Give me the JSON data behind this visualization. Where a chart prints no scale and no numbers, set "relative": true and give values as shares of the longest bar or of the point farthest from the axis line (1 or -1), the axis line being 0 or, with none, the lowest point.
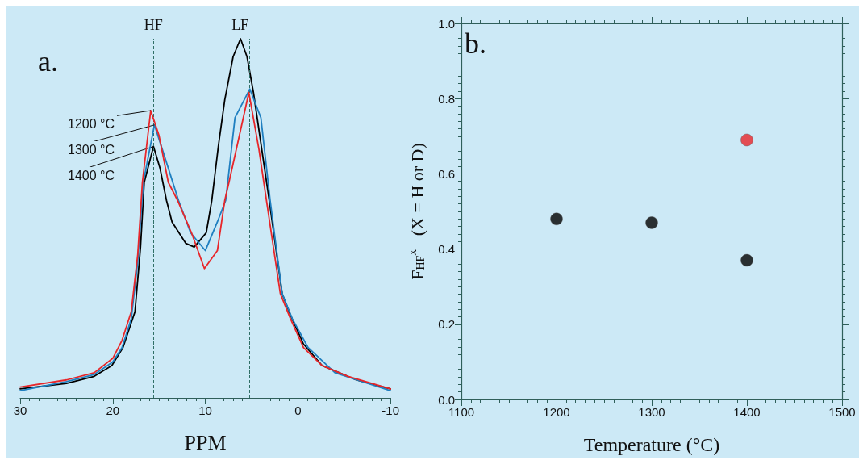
{
  "chart_data": [
    {
      "type": "line",
      "relative": true,
      "xlabel": "PPM",
      "xlim": [
        30,
        -10
      ],
      "xticks": [
        30,
        20,
        10,
        0,
        -10
      ],
      "grid": false,
      "marker": "none",
      "line_style": "solid",
      "annotations": [
        "a."
      ],
      "ref_lines": [
        {
          "axis": "x",
          "value": 15.6,
          "label": "HF",
          "line_style": "dashed",
          "color": "#2f6f66"
        },
        {
          "axis": "x",
          "value": 6.25,
          "label": "LF",
          "line_style": "dashed",
          "color": "#2f6f66"
        },
        {
          "axis": "x",
          "value": 5.25,
          "label": null,
          "line_style": "dashed",
          "color": "#2f6f66"
        }
      ],
      "series": [
        {
          "name": "1200 °C",
          "color": "#e8262a",
          "x": [
            30,
            25,
            22,
            20,
            19,
            18,
            17.3,
            16.8,
            15.9,
            15,
            14,
            13,
            11.5,
            10.1,
            8.7,
            7.9,
            7.45,
            6.5,
            5.3,
            4.2,
            3.4,
            1.9,
            0.8,
            -0.6,
            -2.6,
            -5.4,
            -10
          ],
          "values": [
            0.03,
            0.05,
            0.07,
            0.11,
            0.16,
            0.24,
            0.4,
            0.6,
            0.8,
            0.73,
            0.6,
            0.55,
            0.46,
            0.36,
            0.41,
            0.55,
            0.6,
            0.71,
            0.85,
            0.69,
            0.55,
            0.29,
            0.22,
            0.14,
            0.09,
            0.06,
            0.025
          ]
        },
        {
          "name": "1300 °C",
          "color": "#1f7fc0",
          "x": [
            30,
            25,
            22,
            20,
            19,
            18,
            17.3,
            16.7,
            15.5,
            14.5,
            12.9,
            11.6,
            10,
            8.7,
            7.8,
            6.8,
            5.2,
            4,
            3,
            1.7,
            0.6,
            -1.1,
            -4,
            -10
          ],
          "values": [
            0.02,
            0.045,
            0.065,
            0.1,
            0.14,
            0.22,
            0.38,
            0.6,
            0.76,
            0.68,
            0.55,
            0.46,
            0.41,
            0.49,
            0.55,
            0.78,
            0.86,
            0.78,
            0.55,
            0.29,
            0.22,
            0.14,
            0.07,
            0.02
          ]
        },
        {
          "name": "1400 °C",
          "color": "#000000",
          "x": [
            30,
            25,
            22,
            20.1,
            18.9,
            17.6,
            17,
            16.6,
            15.6,
            14.9,
            14.2,
            13.6,
            12.1,
            11.2,
            9.9,
            9.3,
            8.6,
            7.9,
            7,
            6.2,
            5.5,
            4.8,
            3.1,
            1.7,
            0.8,
            -0.6,
            -2.6,
            -6.3,
            -10
          ],
          "values": [
            0.025,
            0.04,
            0.06,
            0.09,
            0.14,
            0.24,
            0.42,
            0.6,
            0.7,
            0.64,
            0.55,
            0.49,
            0.43,
            0.42,
            0.46,
            0.55,
            0.7,
            0.83,
            0.95,
            1,
            0.95,
            0.85,
            0.55,
            0.29,
            0.23,
            0.15,
            0.09,
            0.05,
            0.025
          ]
        }
      ]
    },
    {
      "type": "scatter",
      "xlabel": "Temperature (°C)",
      "ylabel": "F$_{HF}$$^{X}$   (X = H or D)",
      "xlim": [
        1100,
        1500
      ],
      "xticks": [
        1100,
        1200,
        1300,
        1400,
        1500
      ],
      "ylim": [
        0,
        1
      ],
      "yticks": [
        {
          "value": 0,
          "label": "0.0"
        },
        {
          "value": 0.2,
          "label": "0.2"
        },
        {
          "value": 0.4,
          "label": "0.4"
        },
        {
          "value": 0.6,
          "label": "0.6"
        },
        {
          "value": 0.8,
          "label": "0.8"
        },
        {
          "value": 1,
          "label": "1.0"
        }
      ],
      "grid": false,
      "marker": "circle",
      "annotations": [
        "b."
      ],
      "series": [
        {
          "color": "#000000",
          "x": [
            1200,
            1300,
            1400
          ],
          "values": [
            0.48,
            0.47,
            0.37
          ]
        },
        {
          "color": "#e8262a",
          "x": [
            1400
          ],
          "values": [
            0.69
          ]
        }
      ]
    }
  ]
}
